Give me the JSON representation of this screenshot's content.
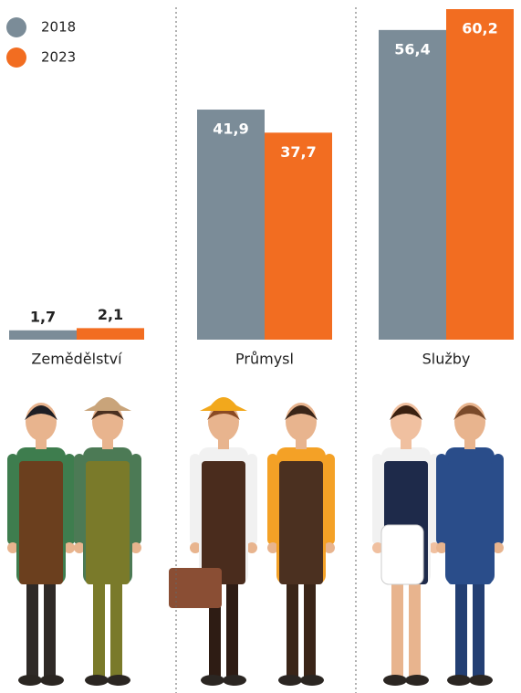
{
  "chart_data": {
    "type": "bar",
    "categories": [
      "Zemědělství",
      "Průmysl",
      "Služby"
    ],
    "series": [
      {
        "name": "2018",
        "color": "#7b8c98",
        "values": [
          1.7,
          41.9,
          56.4
        ],
        "value_labels": [
          "1,7",
          "41,9",
          "56,4"
        ]
      },
      {
        "name": "2023",
        "color": "#f26d21",
        "values": [
          2.1,
          37.7,
          60.2
        ],
        "value_labels": [
          "2,1",
          "37,7",
          "60,2"
        ]
      }
    ],
    "legend": "top-left"
  }
}
